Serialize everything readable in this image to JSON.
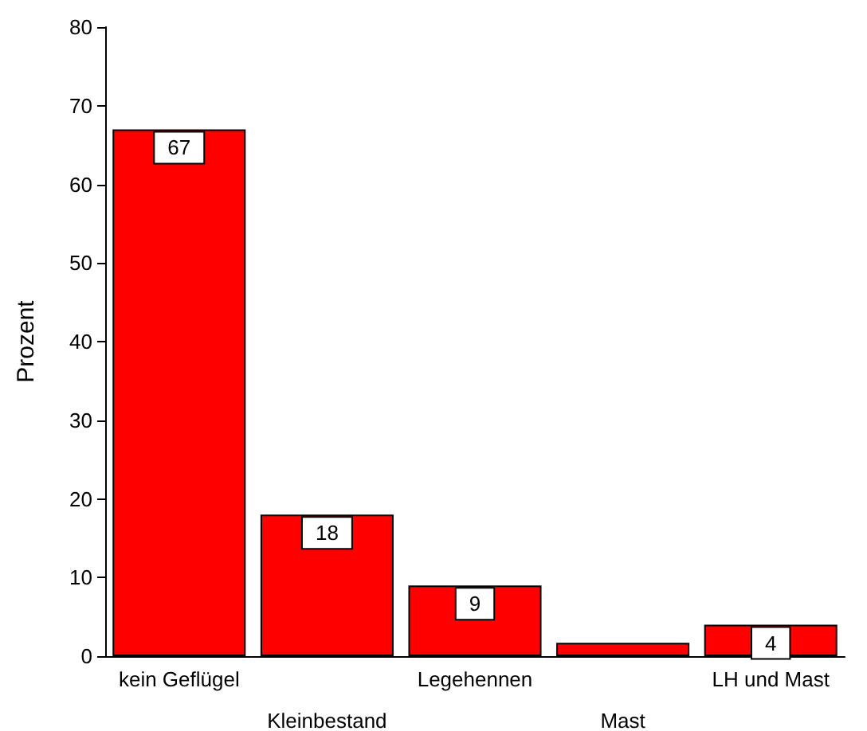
{
  "chart_data": {
    "type": "bar",
    "ylabel": "Prozent",
    "categories": [
      "kein Geflügel",
      "Kleinbestand",
      "Legehennen",
      "Mast",
      "LH und Mast"
    ],
    "values": [
      67,
      18,
      9,
      1.7,
      4
    ],
    "value_labels": [
      "67",
      "18",
      "9",
      null,
      "4"
    ],
    "color": "#ff0000",
    "ylim": [
      0,
      80
    ],
    "yticks": [
      0,
      10,
      20,
      30,
      40,
      50,
      60,
      70,
      80
    ],
    "grid": false
  }
}
